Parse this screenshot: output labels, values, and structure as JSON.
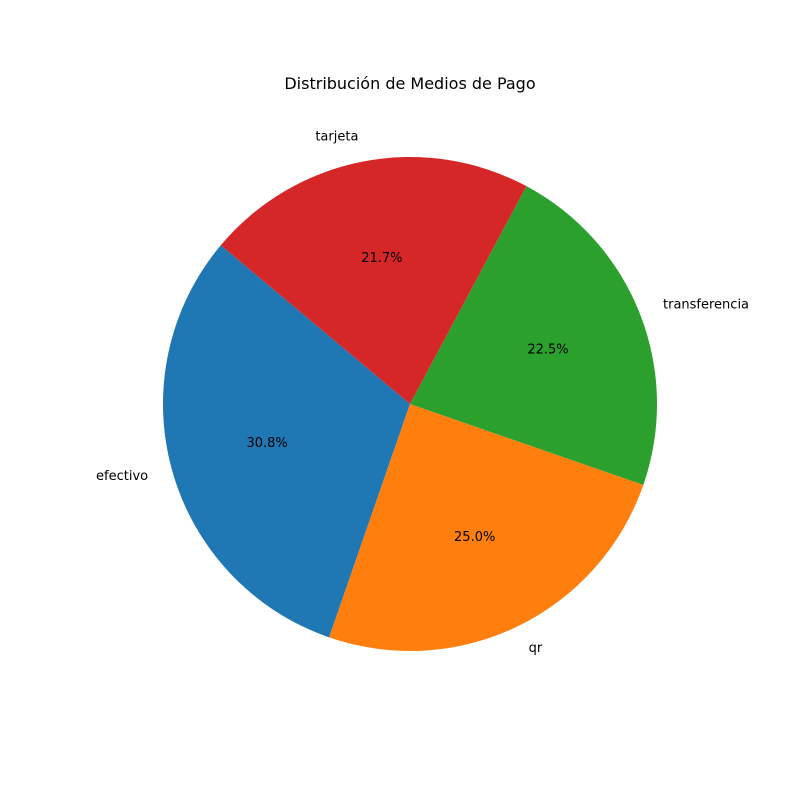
{
  "chart_data": {
    "type": "pie",
    "title": "Distribución de Medios de Pago",
    "categories": [
      "efectivo",
      "qr",
      "transferencia",
      "tarjeta"
    ],
    "values": [
      30.8,
      25.0,
      22.5,
      21.7
    ],
    "labels": [
      "30.8%",
      "25.0%",
      "22.5%",
      "21.7%"
    ],
    "colors": [
      "#1f77b4",
      "#ff7f0e",
      "#2ca02c",
      "#d62728"
    ],
    "start_angle_deg": 140,
    "direction": "counterclockwise"
  }
}
